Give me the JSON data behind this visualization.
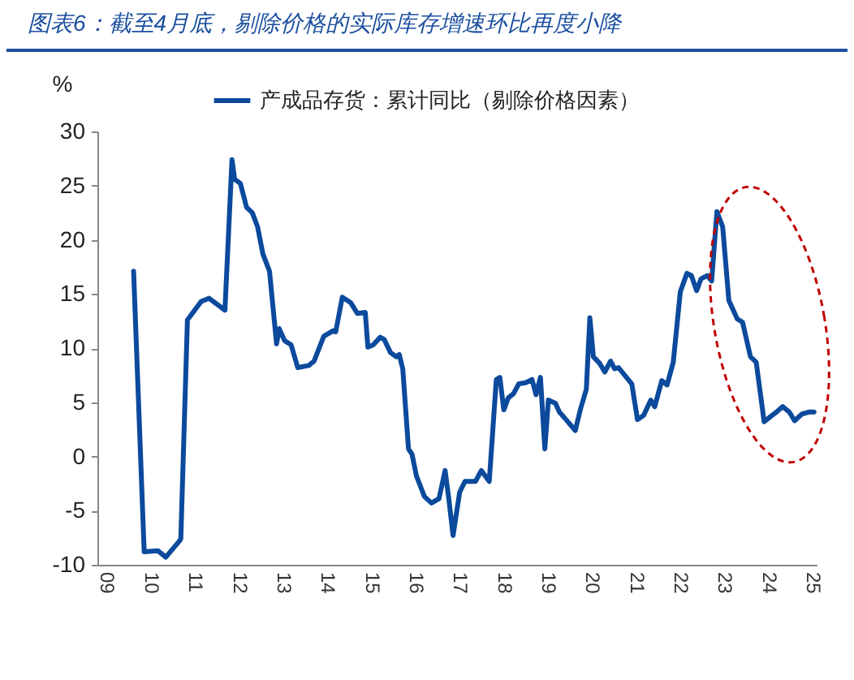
{
  "chart_data": {
    "type": "line",
    "title": "图表6：截至4月底，剔除价格的实际库存增速环比再度小降",
    "ylabel": "%",
    "legend": "top",
    "x": [
      2009.72,
      2009.96,
      2010.27,
      2010.45,
      2010.76,
      2010.79,
      2010.94,
      2011.25,
      2011.43,
      2011.79,
      2011.95,
      2012.01,
      2012.14,
      2012.28,
      2012.41,
      2012.53,
      2012.65,
      2012.8,
      2012.96,
      2013.02,
      2013.14,
      2013.29,
      2013.44,
      2013.69,
      2013.81,
      2014.03,
      2014.24,
      2014.3,
      2014.45,
      2014.64,
      2014.79,
      2014.97,
      2015.03,
      2015.15,
      2015.31,
      2015.4,
      2015.54,
      2015.67,
      2015.74,
      2015.82,
      2015.95,
      2016.03,
      2016.13,
      2016.31,
      2016.47,
      2016.64,
      2016.78,
      2016.86,
      2016.96,
      2017.11,
      2017.23,
      2017.47,
      2017.6,
      2017.78,
      2017.94,
      2018.02,
      2018.11,
      2018.21,
      2018.33,
      2018.45,
      2018.6,
      2018.75,
      2018.84,
      2018.94,
      2019.04,
      2019.12,
      2019.28,
      2019.37,
      2019.52,
      2019.73,
      2019.85,
      2019.98,
      2020.06,
      2020.14,
      2020.28,
      2020.4,
      2020.53,
      2020.62,
      2020.71,
      2020.89,
      2021.01,
      2021.14,
      2021.28,
      2021.44,
      2021.53,
      2021.69,
      2021.81,
      2021.95,
      2022.11,
      2022.26,
      2022.36,
      2022.48,
      2022.58,
      2022.72,
      2022.82,
      2022.94,
      2023.07,
      2023.21,
      2023.4,
      2023.52,
      2023.7,
      2023.83,
      2024.01,
      2024.16,
      2024.29,
      2024.43,
      2024.58,
      2024.7,
      2024.86,
      2025.02,
      2025.14
    ],
    "series": [
      {
        "name": "产成品存货：累计同比（剔除价格因素）",
        "color": "#0b4a9c",
        "values": [
          17.1,
          -8.8,
          -8.7,
          -9.3,
          -7.8,
          -7.6,
          12.6,
          14.3,
          14.6,
          13.5,
          27.4,
          25.6,
          25.2,
          23.0,
          22.5,
          21.2,
          18.7,
          17.1,
          10.4,
          11.8,
          10.7,
          10.3,
          8.2,
          8.4,
          8.8,
          11.1,
          11.6,
          11.5,
          14.7,
          14.2,
          13.2,
          13.3,
          10.1,
          10.3,
          11.0,
          10.8,
          9.6,
          9.2,
          9.4,
          8.1,
          0.7,
          0.2,
          -1.8,
          -3.7,
          -4.3,
          -3.9,
          -1.3,
          -3.8,
          -7.3,
          -3.3,
          -2.3,
          -2.3,
          -1.3,
          -2.3,
          7.1,
          7.3,
          4.3,
          5.4,
          5.8,
          6.7,
          6.8,
          7.1,
          5.7,
          7.3,
          0.7,
          5.2,
          4.9,
          4.1,
          3.4,
          2.4,
          4.4,
          6.2,
          12.8,
          9.2,
          8.6,
          7.8,
          8.8,
          8.1,
          8.2,
          7.3,
          6.7,
          3.4,
          3.8,
          5.2,
          4.6,
          7.0,
          6.6,
          8.7,
          15.2,
          16.9,
          16.7,
          15.3,
          16.4,
          16.7,
          16.2,
          22.6,
          21.2,
          14.4,
          12.7,
          12.4,
          9.2,
          8.7,
          3.2,
          3.7,
          4.1,
          4.6,
          4.1,
          3.3,
          3.9,
          4.1,
          4.1
        ]
      }
    ],
    "xlim": [
      2008.9,
      2025.2
    ],
    "xticks": [
      {
        "value": 2009,
        "label": "09"
      },
      {
        "value": 2010,
        "label": "10"
      },
      {
        "value": 2011,
        "label": "11"
      },
      {
        "value": 2012,
        "label": "12"
      },
      {
        "value": 2013,
        "label": "13"
      },
      {
        "value": 2014,
        "label": "14"
      },
      {
        "value": 2015,
        "label": "15"
      },
      {
        "value": 2016,
        "label": "16"
      },
      {
        "value": 2017,
        "label": "17"
      },
      {
        "value": 2018,
        "label": "18"
      },
      {
        "value": 2019,
        "label": "19"
      },
      {
        "value": 2020,
        "label": "20"
      },
      {
        "value": 2021,
        "label": "21"
      },
      {
        "value": 2022,
        "label": "22"
      },
      {
        "value": 2023,
        "label": "23"
      },
      {
        "value": 2024,
        "label": "24"
      },
      {
        "value": 2025,
        "label": "25"
      }
    ],
    "ylim": [
      -10,
      30
    ],
    "yticks": [
      -10,
      -5,
      0,
      5,
      10,
      15,
      20,
      25,
      30
    ]
  }
}
